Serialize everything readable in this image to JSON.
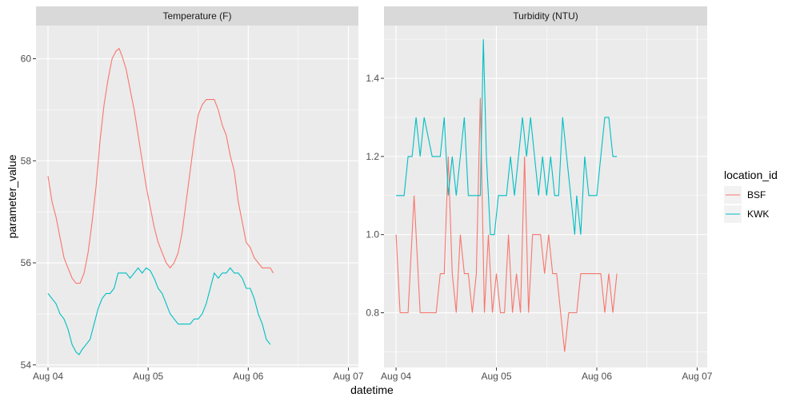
{
  "chart_data": {
    "type": "line",
    "x_axis_title": "datetime",
    "y_axis_title": "parameter_value",
    "x_ticks": [
      "Aug 04",
      "Aug 05",
      "Aug 06",
      "Aug 07"
    ],
    "xlim": [
      -0.12,
      3.1
    ],
    "legend": {
      "title": "location_id",
      "placement": "right",
      "entries": [
        {
          "name": "BSF",
          "color": "#F8766D"
        },
        {
          "name": "KWK",
          "color": "#00BFC4"
        }
      ]
    },
    "panels": [
      {
        "title": "Temperature (F)",
        "ylim": [
          53.95,
          60.65
        ],
        "y_ticks": [
          54,
          56,
          58,
          60
        ],
        "y_tick_labels": [
          "54",
          "56",
          "58",
          "60"
        ],
        "series": [
          {
            "name": "BSF",
            "color": "#F8766D",
            "points": [
              [
                0.0,
                57.7
              ],
              [
                0.04,
                57.2
              ],
              [
                0.08,
                56.9
              ],
              [
                0.12,
                56.5
              ],
              [
                0.16,
                56.1
              ],
              [
                0.2,
                55.9
              ],
              [
                0.24,
                55.7
              ],
              [
                0.28,
                55.6
              ],
              [
                0.32,
                55.6
              ],
              [
                0.36,
                55.8
              ],
              [
                0.4,
                56.2
              ],
              [
                0.44,
                56.8
              ],
              [
                0.48,
                57.5
              ],
              [
                0.52,
                58.4
              ],
              [
                0.56,
                59.1
              ],
              [
                0.6,
                59.6
              ],
              [
                0.64,
                60.0
              ],
              [
                0.68,
                60.15
              ],
              [
                0.71,
                60.2
              ],
              [
                0.74,
                60.05
              ],
              [
                0.78,
                59.8
              ],
              [
                0.82,
                59.4
              ],
              [
                0.86,
                59.0
              ],
              [
                0.9,
                58.5
              ],
              [
                0.94,
                58.0
              ],
              [
                0.98,
                57.5
              ],
              [
                1.02,
                57.1
              ],
              [
                1.06,
                56.7
              ],
              [
                1.1,
                56.4
              ],
              [
                1.14,
                56.2
              ],
              [
                1.18,
                56.0
              ],
              [
                1.22,
                55.9
              ],
              [
                1.26,
                56.0
              ],
              [
                1.3,
                56.2
              ],
              [
                1.34,
                56.6
              ],
              [
                1.38,
                57.2
              ],
              [
                1.42,
                57.8
              ],
              [
                1.46,
                58.4
              ],
              [
                1.5,
                58.9
              ],
              [
                1.54,
                59.1
              ],
              [
                1.58,
                59.2
              ],
              [
                1.62,
                59.2
              ],
              [
                1.66,
                59.2
              ],
              [
                1.7,
                59.0
              ],
              [
                1.74,
                58.7
              ],
              [
                1.78,
                58.5
              ],
              [
                1.82,
                58.1
              ],
              [
                1.86,
                57.8
              ],
              [
                1.9,
                57.2
              ],
              [
                1.94,
                56.8
              ],
              [
                1.98,
                56.4
              ],
              [
                2.02,
                56.3
              ],
              [
                2.06,
                56.1
              ],
              [
                2.1,
                56.0
              ],
              [
                2.14,
                55.9
              ],
              [
                2.18,
                55.9
              ],
              [
                2.22,
                55.9
              ],
              [
                2.25,
                55.8
              ]
            ]
          },
          {
            "name": "KWK",
            "color": "#00BFC4",
            "points": [
              [
                0.0,
                55.4
              ],
              [
                0.04,
                55.3
              ],
              [
                0.08,
                55.2
              ],
              [
                0.12,
                55.0
              ],
              [
                0.16,
                54.9
              ],
              [
                0.2,
                54.7
              ],
              [
                0.24,
                54.4
              ],
              [
                0.28,
                54.25
              ],
              [
                0.31,
                54.2
              ],
              [
                0.34,
                54.3
              ],
              [
                0.38,
                54.4
              ],
              [
                0.42,
                54.5
              ],
              [
                0.46,
                54.8
              ],
              [
                0.5,
                55.1
              ],
              [
                0.54,
                55.3
              ],
              [
                0.58,
                55.4
              ],
              [
                0.62,
                55.4
              ],
              [
                0.66,
                55.5
              ],
              [
                0.7,
                55.8
              ],
              [
                0.74,
                55.8
              ],
              [
                0.78,
                55.8
              ],
              [
                0.82,
                55.7
              ],
              [
                0.86,
                55.8
              ],
              [
                0.9,
                55.9
              ],
              [
                0.94,
                55.8
              ],
              [
                0.98,
                55.9
              ],
              [
                1.02,
                55.85
              ],
              [
                1.06,
                55.7
              ],
              [
                1.1,
                55.5
              ],
              [
                1.14,
                55.4
              ],
              [
                1.18,
                55.2
              ],
              [
                1.22,
                55.0
              ],
              [
                1.26,
                54.9
              ],
              [
                1.3,
                54.8
              ],
              [
                1.34,
                54.8
              ],
              [
                1.38,
                54.8
              ],
              [
                1.42,
                54.8
              ],
              [
                1.46,
                54.9
              ],
              [
                1.5,
                54.9
              ],
              [
                1.54,
                55.0
              ],
              [
                1.58,
                55.2
              ],
              [
                1.62,
                55.5
              ],
              [
                1.66,
                55.8
              ],
              [
                1.7,
                55.7
              ],
              [
                1.74,
                55.8
              ],
              [
                1.78,
                55.8
              ],
              [
                1.82,
                55.9
              ],
              [
                1.86,
                55.8
              ],
              [
                1.9,
                55.8
              ],
              [
                1.94,
                55.7
              ],
              [
                1.98,
                55.5
              ],
              [
                2.02,
                55.5
              ],
              [
                2.06,
                55.3
              ],
              [
                2.1,
                55.0
              ],
              [
                2.14,
                54.8
              ],
              [
                2.18,
                54.5
              ],
              [
                2.22,
                54.4
              ]
            ]
          }
        ]
      },
      {
        "title": "Turbidity (NTU)",
        "ylim": [
          0.66,
          1.535
        ],
        "y_ticks": [
          0.8,
          1.0,
          1.2,
          1.4
        ],
        "y_tick_labels": [
          "0.8",
          "1.0",
          "1.2",
          "1.4"
        ],
        "series": [
          {
            "name": "BSF",
            "color": "#F8766D",
            "points": [
              [
                0.0,
                1.0
              ],
              [
                0.04,
                0.8
              ],
              [
                0.08,
                0.8
              ],
              [
                0.12,
                0.8
              ],
              [
                0.18,
                1.1
              ],
              [
                0.24,
                0.8
              ],
              [
                0.28,
                0.8
              ],
              [
                0.32,
                0.8
              ],
              [
                0.36,
                0.8
              ],
              [
                0.4,
                0.8
              ],
              [
                0.44,
                0.9
              ],
              [
                0.48,
                0.9
              ],
              [
                0.52,
                1.2
              ],
              [
                0.56,
                0.9
              ],
              [
                0.6,
                0.8
              ],
              [
                0.64,
                1.0
              ],
              [
                0.68,
                0.9
              ],
              [
                0.72,
                0.9
              ],
              [
                0.76,
                0.8
              ],
              [
                0.8,
                0.9
              ],
              [
                0.84,
                1.35
              ],
              [
                0.88,
                0.8
              ],
              [
                0.92,
                1.0
              ],
              [
                0.96,
                0.8
              ],
              [
                1.0,
                0.9
              ],
              [
                1.04,
                0.8
              ],
              [
                1.08,
                0.8
              ],
              [
                1.12,
                1.0
              ],
              [
                1.16,
                0.8
              ],
              [
                1.2,
                0.9
              ],
              [
                1.24,
                0.8
              ],
              [
                1.28,
                1.2
              ],
              [
                1.32,
                0.8
              ],
              [
                1.36,
                1.0
              ],
              [
                1.4,
                1.0
              ],
              [
                1.44,
                1.0
              ],
              [
                1.48,
                0.9
              ],
              [
                1.52,
                1.0
              ],
              [
                1.56,
                0.9
              ],
              [
                1.6,
                0.9
              ],
              [
                1.64,
                0.8
              ],
              [
                1.68,
                0.7
              ],
              [
                1.72,
                0.8
              ],
              [
                1.76,
                0.8
              ],
              [
                1.8,
                0.8
              ],
              [
                1.84,
                0.9
              ],
              [
                1.88,
                0.9
              ],
              [
                1.92,
                0.9
              ],
              [
                1.96,
                0.9
              ],
              [
                2.0,
                0.9
              ],
              [
                2.04,
                0.9
              ],
              [
                2.08,
                0.8
              ],
              [
                2.12,
                0.9
              ],
              [
                2.16,
                0.8
              ],
              [
                2.2,
                0.9
              ]
            ]
          },
          {
            "name": "KWK",
            "color": "#00BFC4",
            "points": [
              [
                0.0,
                1.1
              ],
              [
                0.04,
                1.1
              ],
              [
                0.08,
                1.1
              ],
              [
                0.12,
                1.2
              ],
              [
                0.16,
                1.2
              ],
              [
                0.2,
                1.3
              ],
              [
                0.24,
                1.2
              ],
              [
                0.28,
                1.3
              ],
              [
                0.32,
                1.25
              ],
              [
                0.36,
                1.2
              ],
              [
                0.4,
                1.2
              ],
              [
                0.44,
                1.2
              ],
              [
                0.48,
                1.3
              ],
              [
                0.52,
                1.1
              ],
              [
                0.56,
                1.2
              ],
              [
                0.6,
                1.1
              ],
              [
                0.64,
                1.2
              ],
              [
                0.68,
                1.3
              ],
              [
                0.72,
                1.1
              ],
              [
                0.76,
                1.1
              ],
              [
                0.8,
                1.1
              ],
              [
                0.84,
                1.1
              ],
              [
                0.87,
                1.5
              ],
              [
                0.9,
                1.2
              ],
              [
                0.94,
                1.0
              ],
              [
                0.98,
                1.0
              ],
              [
                1.02,
                1.1
              ],
              [
                1.06,
                1.1
              ],
              [
                1.1,
                1.1
              ],
              [
                1.14,
                1.2
              ],
              [
                1.18,
                1.1
              ],
              [
                1.22,
                1.2
              ],
              [
                1.26,
                1.3
              ],
              [
                1.3,
                1.2
              ],
              [
                1.34,
                1.3
              ],
              [
                1.38,
                1.2
              ],
              [
                1.42,
                1.1
              ],
              [
                1.46,
                1.2
              ],
              [
                1.5,
                1.1
              ],
              [
                1.54,
                1.2
              ],
              [
                1.58,
                1.1
              ],
              [
                1.62,
                1.1
              ],
              [
                1.66,
                1.3
              ],
              [
                1.7,
                1.2
              ],
              [
                1.74,
                1.1
              ],
              [
                1.78,
                1.0
              ],
              [
                1.8,
                1.1
              ],
              [
                1.84,
                1.0
              ],
              [
                1.88,
                1.2
              ],
              [
                1.92,
                1.1
              ],
              [
                1.96,
                1.1
              ],
              [
                2.0,
                1.1
              ],
              [
                2.04,
                1.2
              ],
              [
                2.08,
                1.3
              ],
              [
                2.12,
                1.3
              ],
              [
                2.16,
                1.2
              ],
              [
                2.2,
                1.2
              ]
            ]
          }
        ]
      }
    ]
  }
}
